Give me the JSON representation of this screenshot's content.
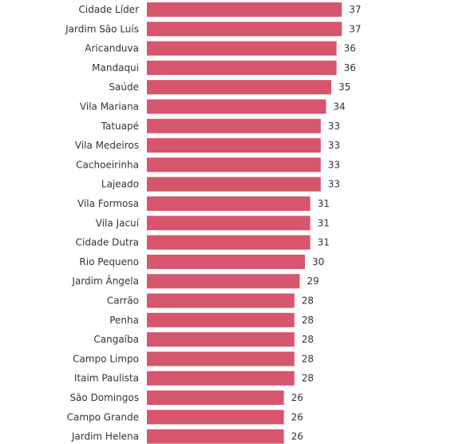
{
  "chart_data": {
    "type": "bar",
    "orientation": "horizontal",
    "categories": [
      "Cidade Líder",
      "Jardim São Luís",
      "Aricanduva",
      "Mandaqui",
      "Saúde",
      "Vila Mariana",
      "Tatuapé",
      "Vila Medeiros",
      "Cachoeirinha",
      "Lajeado",
      "Vila Formosa",
      "Vila Jacuí",
      "Cidade Dutra",
      "Rio Pequeno",
      "Jardim Ângela",
      "Carrão",
      "Penha",
      "Cangaíba",
      "Campo Limpo",
      "Itaim Paulista",
      "São Domingos",
      "Campo Grande",
      "Jardim Helena"
    ],
    "values": [
      37,
      37,
      36,
      36,
      35,
      34,
      33,
      33,
      33,
      33,
      31,
      31,
      31,
      30,
      29,
      28,
      28,
      28,
      28,
      28,
      26,
      26,
      26
    ],
    "title": "",
    "xlabel": "",
    "ylabel": "",
    "xlim": [
      0,
      37
    ],
    "grid": false,
    "legend": "none",
    "colors": {
      "bar": "#d6566e",
      "text": "#333333"
    }
  }
}
